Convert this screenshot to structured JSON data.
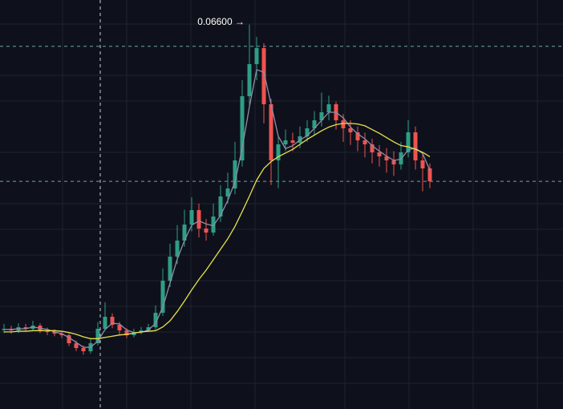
{
  "chart_data": {
    "type": "candlestick",
    "categories": [
      null,
      null,
      null,
      null,
      null,
      null,
      null,
      null,
      null,
      null,
      null,
      null,
      null,
      null,
      null,
      null,
      null,
      null,
      null,
      null,
      null,
      null,
      null,
      null,
      null,
      null,
      null,
      null,
      null,
      null,
      null,
      null,
      null,
      null,
      null,
      null,
      null,
      null,
      null,
      null,
      null,
      null,
      null,
      null,
      null,
      null,
      null,
      null,
      null,
      null,
      null,
      null,
      null,
      null,
      null,
      null,
      null,
      null,
      null,
      null
    ],
    "open": [
      0.0165,
      0.0167,
      0.01644,
      0.01696,
      0.0167,
      0.01722,
      0.01644,
      0.01618,
      0.01592,
      0.01566,
      0.01436,
      0.01358,
      0.01306,
      0.01436,
      0.0167,
      0.01865,
      0.01735,
      0.01644,
      0.01566,
      0.01618,
      0.01644,
      0.01696,
      0.0193,
      0.0245,
      0.0284,
      0.031,
      0.0336,
      0.03594,
      0.03295,
      0.0323,
      0.0349,
      0.03815,
      0.03945,
      0.044,
      0.0544,
      0.0596,
      0.0622,
      0.0531,
      0.044,
      0.0466,
      0.04725,
      0.04686,
      0.0479,
      0.0492,
      0.0505,
      0.0518,
      0.0531,
      0.0505,
      0.0492,
      0.04855,
      0.04725,
      0.0466,
      0.0453,
      0.04465,
      0.044,
      0.04335,
      0.0453,
      0.04855,
      0.044,
      0.0427
    ],
    "high": [
      0.0175,
      0.0172,
      0.0176,
      0.0175,
      0.018,
      0.0176,
      0.0169,
      0.0166,
      0.0163,
      0.016,
      0.0148,
      0.014,
      0.015,
      0.0178,
      0.021,
      0.0192,
      0.0178,
      0.0168,
      0.0167,
      0.017,
      0.0175,
      0.0205,
      0.0265,
      0.0305,
      0.0335,
      0.036,
      0.038,
      0.037,
      0.0345,
      0.037,
      0.04,
      0.042,
      0.047,
      0.057,
      0.066,
      0.064,
      0.063,
      0.054,
      0.048,
      0.049,
      0.0485,
      0.0495,
      0.0505,
      0.052,
      0.055,
      0.0545,
      0.0535,
      0.0515,
      0.0505,
      0.0495,
      0.0485,
      0.0475,
      0.0465,
      0.046,
      0.0455,
      0.047,
      0.0505,
      0.0495,
      0.045,
      0.0435
    ],
    "low": [
      0.016,
      0.0159,
      0.016,
      0.0163,
      0.0164,
      0.016,
      0.0157,
      0.0155,
      0.0152,
      0.0139,
      0.0131,
      0.0125,
      0.0127,
      0.014,
      0.0164,
      0.0168,
      0.0158,
      0.0152,
      0.0153,
      0.0158,
      0.0162,
      0.0166,
      0.0188,
      0.0235,
      0.0272,
      0.03,
      0.0325,
      0.0315,
      0.031,
      0.0318,
      0.034,
      0.037,
      0.0385,
      0.043,
      0.053,
      0.057,
      0.05,
      0.04,
      0.0395,
      0.0455,
      0.0455,
      0.046,
      0.047,
      0.048,
      0.0495,
      0.0505,
      0.049,
      0.047,
      0.0465,
      0.0455,
      0.0445,
      0.0435,
      0.043,
      0.042,
      0.0415,
      0.0425,
      0.0445,
      0.0425,
      0.039,
      0.0395
    ],
    "close": [
      0.0167,
      0.01644,
      0.01696,
      0.0167,
      0.01722,
      0.01644,
      0.01618,
      0.01592,
      0.01566,
      0.01436,
      0.01358,
      0.01306,
      0.01436,
      0.0167,
      0.01865,
      0.01735,
      0.01644,
      0.01566,
      0.01618,
      0.01644,
      0.01696,
      0.0193,
      0.0245,
      0.0284,
      0.031,
      0.0336,
      0.03594,
      0.03295,
      0.0323,
      0.0349,
      0.03815,
      0.03945,
      0.044,
      0.0544,
      0.0596,
      0.0622,
      0.0531,
      0.044,
      0.0466,
      0.04725,
      0.04686,
      0.0479,
      0.0492,
      0.0505,
      0.0518,
      0.0531,
      0.0505,
      0.0492,
      0.04855,
      0.04725,
      0.0466,
      0.0453,
      0.04465,
      0.044,
      0.04335,
      0.0453,
      0.04855,
      0.044,
      0.0427,
      0.04062
    ],
    "up_color": "#2e9e86",
    "down_color": "#ef5350",
    "lines": [
      {
        "color": "#8e8ea8",
        "values": [
          0.0166,
          0.0166,
          0.0167,
          0.0167,
          0.017,
          0.0168,
          0.0166,
          0.0162,
          0.0159,
          0.0153,
          0.0145,
          0.0137,
          0.0137,
          0.0147,
          0.0166,
          0.0176,
          0.0175,
          0.0165,
          0.0161,
          0.0161,
          0.0165,
          0.0176,
          0.0202,
          0.0241,
          0.028,
          0.031,
          0.0335,
          0.0342,
          0.0337,
          0.0334,
          0.0351,
          0.0375,
          0.0405,
          0.046,
          0.0527,
          0.0587,
          0.0583,
          0.0531,
          0.0479,
          0.0459,
          0.0464,
          0.0473,
          0.048,
          0.0492,
          0.0505,
          0.0518,
          0.0518,
          0.0509,
          0.0494,
          0.0483,
          0.0475,
          0.0464,
          0.0455,
          0.0447,
          0.044,
          0.0442,
          0.0457,
          0.046,
          0.0451,
          0.0424
        ]
      },
      {
        "color": "#e8e04a",
        "values": [
          0.0162,
          0.0162,
          0.0163,
          0.0163,
          0.0164,
          0.0164,
          0.0164,
          0.0164,
          0.0163,
          0.0161,
          0.0158,
          0.0154,
          0.0151,
          0.0151,
          0.0153,
          0.0155,
          0.0157,
          0.0158,
          0.016,
          0.0162,
          0.0163,
          0.0164,
          0.017,
          0.018,
          0.0195,
          0.0212,
          0.023,
          0.0247,
          0.0262,
          0.0279,
          0.0296,
          0.0313,
          0.0333,
          0.0357,
          0.0382,
          0.0408,
          0.0427,
          0.0438,
          0.0446,
          0.0452,
          0.0458,
          0.0466,
          0.0474,
          0.0481,
          0.0488,
          0.0494,
          0.0498,
          0.05,
          0.05,
          0.0499,
          0.0496,
          0.049,
          0.0484,
          0.0477,
          0.047,
          0.0464,
          0.0462,
          0.0458,
          0.0453,
          0.0446
        ]
      }
    ],
    "price_lines": [
      0.0625,
      0.0406
    ],
    "price_line_color": "#6fa3ad",
    "max_label": {
      "value": 0.066,
      "label": "0.06600 →"
    },
    "ylim": [
      0.0037,
      0.07
    ],
    "grid": true
  }
}
